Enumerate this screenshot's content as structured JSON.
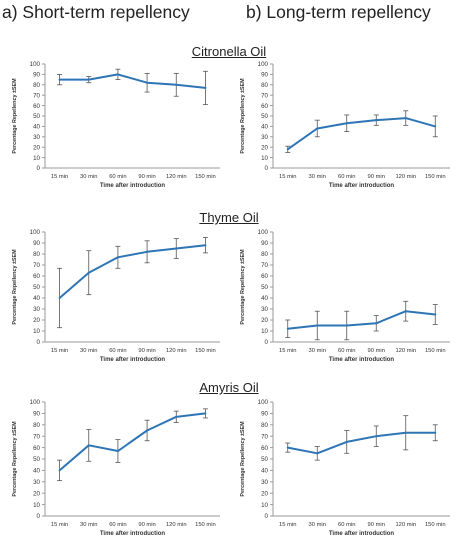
{
  "column_headings": [
    "a) Short-term repellency",
    "b) Long-term repellency"
  ],
  "oil_titles": [
    "Citronella Oil",
    "Thyme Oil",
    "Amyris Oil"
  ],
  "colors": {
    "line": "#2E75B6",
    "error_bar": "#555555",
    "axis": "#9a9a9a",
    "text": "#333333"
  },
  "chart_data": [
    {
      "type": "line",
      "panel": "a",
      "oil": "Citronella Oil",
      "categories": [
        "15 min",
        "30 min",
        "60 min",
        "90 min",
        "120 min",
        "150 min"
      ],
      "values": [
        85,
        85,
        90,
        82,
        80,
        77
      ],
      "error": [
        5,
        3,
        5,
        9,
        11,
        16
      ],
      "ylim": [
        0,
        100
      ],
      "yticks": [
        0,
        10,
        20,
        30,
        40,
        50,
        60,
        70,
        80,
        90,
        100
      ],
      "ylabel": "Percentage Repellency ±SEM",
      "xlabel": "Time after introduction",
      "grid": false,
      "legend": "none"
    },
    {
      "type": "line",
      "panel": "b",
      "oil": "Citronella Oil",
      "categories": [
        "15 min",
        "30 min",
        "60 min",
        "90 min",
        "120 min",
        "150 min"
      ],
      "values": [
        18,
        38,
        43,
        46,
        48,
        40
      ],
      "error": [
        3,
        8,
        8,
        5,
        7,
        10
      ],
      "ylim": [
        0,
        100
      ],
      "yticks": [
        0,
        10,
        20,
        30,
        40,
        50,
        60,
        70,
        80,
        90,
        100
      ],
      "ylabel": "Percentage Repellency ±SEM",
      "xlabel": "Time after introduction",
      "grid": false,
      "legend": "none"
    },
    {
      "type": "line",
      "panel": "a",
      "oil": "Thyme Oil",
      "categories": [
        "15 min",
        "30 min",
        "60 min",
        "90 min",
        "120 min",
        "150 min"
      ],
      "values": [
        40,
        63,
        77,
        82,
        85,
        88
      ],
      "error": [
        27,
        20,
        10,
        10,
        9,
        7
      ],
      "ylim": [
        0,
        100
      ],
      "yticks": [
        0,
        10,
        20,
        30,
        40,
        50,
        60,
        70,
        80,
        90,
        100
      ],
      "ylabel": "Percentage Repellency ±SEM",
      "xlabel": "Time after introduction",
      "grid": false,
      "legend": "none"
    },
    {
      "type": "line",
      "panel": "b",
      "oil": "Thyme Oil",
      "categories": [
        "15 min",
        "30 min",
        "60 min",
        "90 min",
        "120 min",
        "150 min"
      ],
      "values": [
        12,
        15,
        15,
        17,
        28,
        25
      ],
      "error": [
        8,
        13,
        13,
        7,
        9,
        9
      ],
      "ylim": [
        0,
        100
      ],
      "yticks": [
        0,
        10,
        20,
        30,
        40,
        50,
        60,
        70,
        80,
        90,
        100
      ],
      "ylabel": "Percentage Repellency ±SEM",
      "xlabel": "Time after introduction",
      "grid": false,
      "legend": "none"
    },
    {
      "type": "line",
      "panel": "a",
      "oil": "Amyris Oil",
      "categories": [
        "15 min",
        "30 min",
        "60 min",
        "90 min",
        "120 min",
        "150 min"
      ],
      "values": [
        40,
        62,
        57,
        75,
        87,
        90
      ],
      "error": [
        9,
        14,
        10,
        9,
        5,
        4
      ],
      "ylim": [
        0,
        100
      ],
      "yticks": [
        0,
        10,
        20,
        30,
        40,
        50,
        60,
        70,
        80,
        90,
        100
      ],
      "ylabel": "Percentage Repellency ±SEM",
      "xlabel": "Time after introduction",
      "grid": false,
      "legend": "none"
    },
    {
      "type": "line",
      "panel": "b",
      "oil": "Amyris Oil",
      "categories": [
        "15 min",
        "30 min",
        "60 min",
        "90 min",
        "120 min",
        "150 min"
      ],
      "values": [
        60,
        55,
        65,
        70,
        73,
        73
      ],
      "error": [
        4,
        6,
        10,
        9,
        15,
        7
      ],
      "ylim": [
        0,
        100
      ],
      "yticks": [
        0,
        10,
        20,
        30,
        40,
        50,
        60,
        70,
        80,
        90,
        100
      ],
      "ylabel": "Percentage Repellency ±SEM",
      "xlabel": "Time after introduction",
      "grid": false,
      "legend": "none"
    }
  ]
}
